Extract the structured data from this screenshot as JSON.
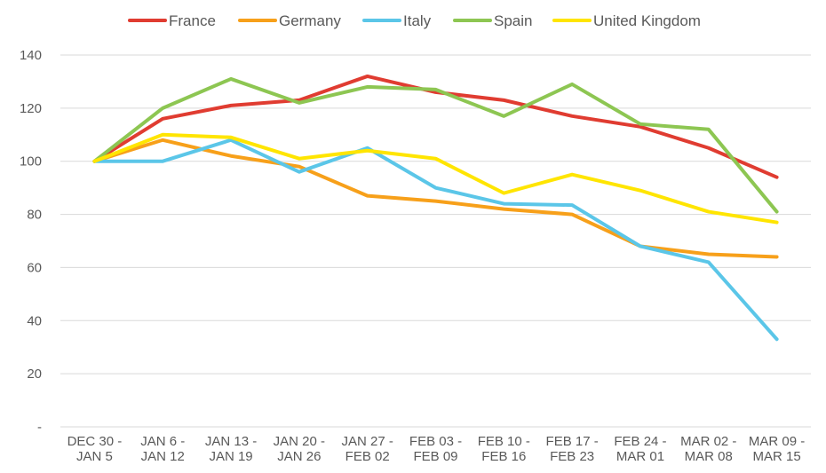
{
  "chart_data": {
    "type": "line",
    "categories": [
      [
        "DEC 30 -",
        "JAN 5"
      ],
      [
        "JAN 6 -",
        "JAN 12"
      ],
      [
        "JAN 13 -",
        "JAN 19"
      ],
      [
        "JAN 20 -",
        "JAN 26"
      ],
      [
        "JAN 27 -",
        "FEB 02"
      ],
      [
        "FEB 03 -",
        "FEB 09"
      ],
      [
        "FEB 10 -",
        "FEB 16"
      ],
      [
        "FEB 17 -",
        "FEB 23"
      ],
      [
        "FEB 24 -",
        "MAR 01"
      ],
      [
        "MAR 02 -",
        "MAR 08"
      ],
      [
        "MAR 09 -",
        "MAR 15"
      ]
    ],
    "series": [
      {
        "name": "France",
        "color": "#E03C31",
        "values": [
          100,
          116,
          121,
          123,
          132,
          126,
          123,
          117,
          113,
          105,
          94
        ]
      },
      {
        "name": "Germany",
        "color": "#F7A01A",
        "values": [
          100,
          108,
          102,
          98,
          87,
          85,
          82,
          80,
          68,
          65,
          64
        ]
      },
      {
        "name": "Italy",
        "color": "#5BC6E8",
        "values": [
          100,
          100,
          108,
          96,
          105,
          90,
          84,
          83.5,
          68,
          62,
          33
        ]
      },
      {
        "name": "Spain",
        "color": "#8DC652",
        "values": [
          100,
          120,
          131,
          122,
          128,
          127,
          117,
          129,
          114,
          112,
          81
        ]
      },
      {
        "name": "United Kingdom",
        "color": "#FFE500",
        "values": [
          100,
          110,
          109,
          101,
          104,
          101,
          88,
          95,
          89,
          81,
          77
        ]
      }
    ],
    "yticks": [
      {
        "value": 0,
        "label": "-"
      },
      {
        "value": 20,
        "label": "20"
      },
      {
        "value": 40,
        "label": "40"
      },
      {
        "value": 60,
        "label": "60"
      },
      {
        "value": 80,
        "label": "80"
      },
      {
        "value": 100,
        "label": "100"
      },
      {
        "value": 120,
        "label": "120"
      },
      {
        "value": 140,
        "label": "140"
      }
    ],
    "ylim": [
      0,
      140
    ],
    "grid": true,
    "legend_position": "top-center",
    "title": "",
    "xlabel": "",
    "ylabel": ""
  }
}
